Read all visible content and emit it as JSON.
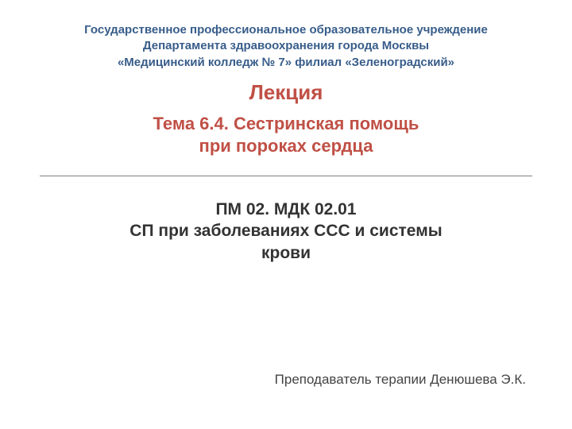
{
  "colors": {
    "background": "#ffffff",
    "institution_text": "#385d8a",
    "lecture_label": "#c05046",
    "topic_text": "#c05046",
    "module_text": "#333333",
    "author_text": "#444444",
    "divider": "#808080"
  },
  "typography": {
    "institution_fontsize": 15,
    "lecture_label_fontsize": 26,
    "topic_fontsize": 22,
    "module_fontsize": 21,
    "author_fontsize": 17
  },
  "institution": {
    "line1": "Государственное профессиональное образовательное учреждение",
    "line2": "Департамента здравоохранения города Москвы",
    "line3": "«Медицинский колледж № 7» филиал «Зеленоградский»"
  },
  "lecture_label": "Лекция",
  "topic": {
    "line1": "Тема 6.4. Сестринская помощь",
    "line2": "при  пороках сердца"
  },
  "module": {
    "line1": "ПМ 02. МДК 02.01",
    "line2": "СП при заболеваниях ССС и системы",
    "line3": "крови"
  },
  "author": "Преподаватель терапии Денюшева Э.К."
}
